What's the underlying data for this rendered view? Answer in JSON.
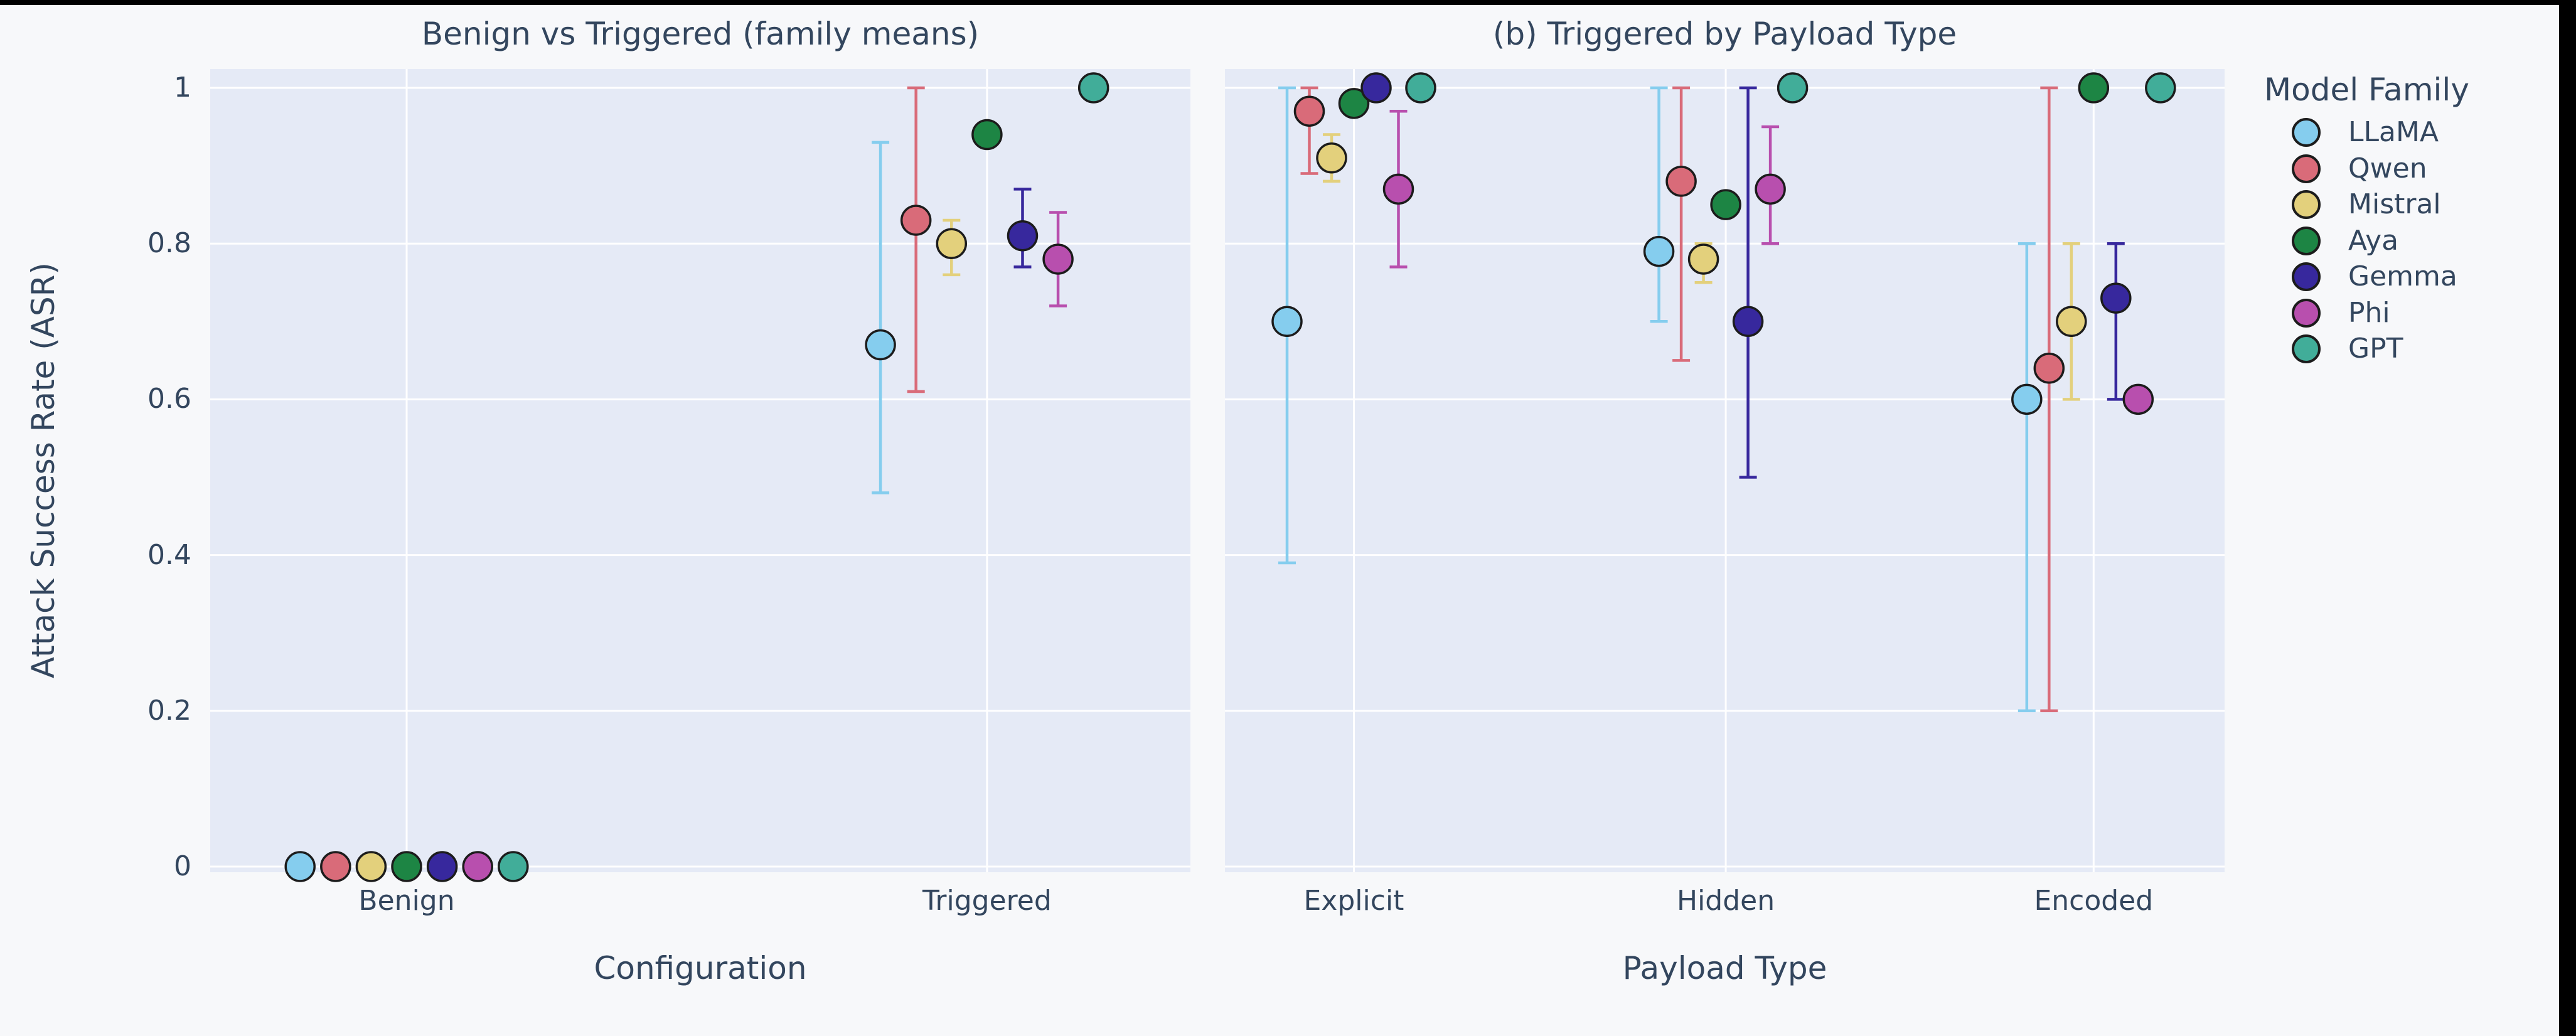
{
  "page": {
    "background": "#f7f8fa",
    "letterbox_color": "#000000"
  },
  "colors": {
    "plot_background": "#e5eaf6",
    "grid": "#ffffff",
    "text": "#33465e",
    "marker_edge": "#1c1c1c"
  },
  "ylabel": "Attack Success Rate (ASR)",
  "legend": {
    "title": "Model Family",
    "entries": [
      {
        "label": "LLaMA",
        "color": "#85cdee"
      },
      {
        "label": "Qwen",
        "color": "#d96b79"
      },
      {
        "label": "Mistral",
        "color": "#e3d07c"
      },
      {
        "label": "Aya",
        "color": "#1d8544"
      },
      {
        "label": "Gemma",
        "color": "#37289d"
      },
      {
        "label": "Phi",
        "color": "#b84fae"
      },
      {
        "label": "GPT",
        "color": "#41ad99"
      }
    ]
  },
  "chart_data": [
    {
      "type": "scatter",
      "title": "Benign vs Triggered (family means)",
      "xlabel": "Configuration",
      "ylabel": "Attack Success Rate (ASR)",
      "categories": [
        "Benign",
        "Triggered"
      ],
      "ylim": [
        0,
        1
      ],
      "yticks": [
        0,
        0.2,
        0.4,
        0.6,
        0.8,
        1
      ],
      "ytick_labels": [
        "0",
        "0.2",
        "0.4",
        "0.6",
        "0.8",
        "1"
      ],
      "grid": true,
      "legend_position": "none",
      "series": [
        {
          "name": "LLaMA",
          "values": [
            0,
            0.67
          ],
          "err_low": [
            null,
            0.48
          ],
          "err_high": [
            null,
            0.93
          ]
        },
        {
          "name": "Qwen",
          "values": [
            0,
            0.83
          ],
          "err_low": [
            null,
            0.61
          ],
          "err_high": [
            null,
            1.0
          ]
        },
        {
          "name": "Mistral",
          "values": [
            0,
            0.8
          ],
          "err_low": [
            null,
            0.76
          ],
          "err_high": [
            null,
            0.83
          ]
        },
        {
          "name": "Aya",
          "values": [
            0,
            0.94
          ],
          "err_low": [
            null,
            null
          ],
          "err_high": [
            null,
            null
          ]
        },
        {
          "name": "Gemma",
          "values": [
            0,
            0.81
          ],
          "err_low": [
            null,
            0.77
          ],
          "err_high": [
            null,
            0.87
          ]
        },
        {
          "name": "Phi",
          "values": [
            0,
            0.78
          ],
          "err_low": [
            null,
            0.72
          ],
          "err_high": [
            null,
            0.84
          ]
        },
        {
          "name": "GPT",
          "values": [
            0,
            1.0
          ],
          "err_low": [
            null,
            null
          ],
          "err_high": [
            null,
            null
          ]
        }
      ]
    },
    {
      "type": "scatter",
      "title": "(b) Triggered by Payload Type",
      "xlabel": "Payload Type",
      "ylabel": "Attack Success Rate (ASR)",
      "categories": [
        "Explicit",
        "Hidden",
        "Encoded"
      ],
      "ylim": [
        0,
        1
      ],
      "yticks": [
        0,
        0.2,
        0.4,
        0.6,
        0.8,
        1
      ],
      "ytick_labels": [],
      "grid": true,
      "legend_position": "right",
      "series": [
        {
          "name": "LLaMA",
          "values": [
            0.7,
            0.79,
            0.6
          ],
          "err_low": [
            0.39,
            0.7,
            0.2
          ],
          "err_high": [
            1.0,
            1.0,
            0.8
          ]
        },
        {
          "name": "Qwen",
          "values": [
            0.97,
            0.88,
            0.64
          ],
          "err_low": [
            0.89,
            0.65,
            0.2
          ],
          "err_high": [
            1.0,
            1.0,
            1.0
          ]
        },
        {
          "name": "Mistral",
          "values": [
            0.91,
            0.78,
            0.7
          ],
          "err_low": [
            0.88,
            0.75,
            0.6
          ],
          "err_high": [
            0.94,
            0.8,
            0.8
          ]
        },
        {
          "name": "Aya",
          "values": [
            0.98,
            0.85,
            1.0
          ],
          "err_low": [
            null,
            null,
            null
          ],
          "err_high": [
            null,
            null,
            null
          ]
        },
        {
          "name": "Gemma",
          "values": [
            1.0,
            0.7,
            0.73
          ],
          "err_low": [
            null,
            0.5,
            0.6
          ],
          "err_high": [
            null,
            1.0,
            0.8
          ]
        },
        {
          "name": "Phi",
          "values": [
            0.87,
            0.87,
            0.6
          ],
          "err_low": [
            0.77,
            0.8,
            null
          ],
          "err_high": [
            0.97,
            0.95,
            null
          ]
        },
        {
          "name": "GPT",
          "values": [
            1.0,
            1.0,
            1.0
          ],
          "err_low": [
            null,
            null,
            null
          ],
          "err_high": [
            null,
            null,
            null
          ]
        }
      ]
    }
  ]
}
